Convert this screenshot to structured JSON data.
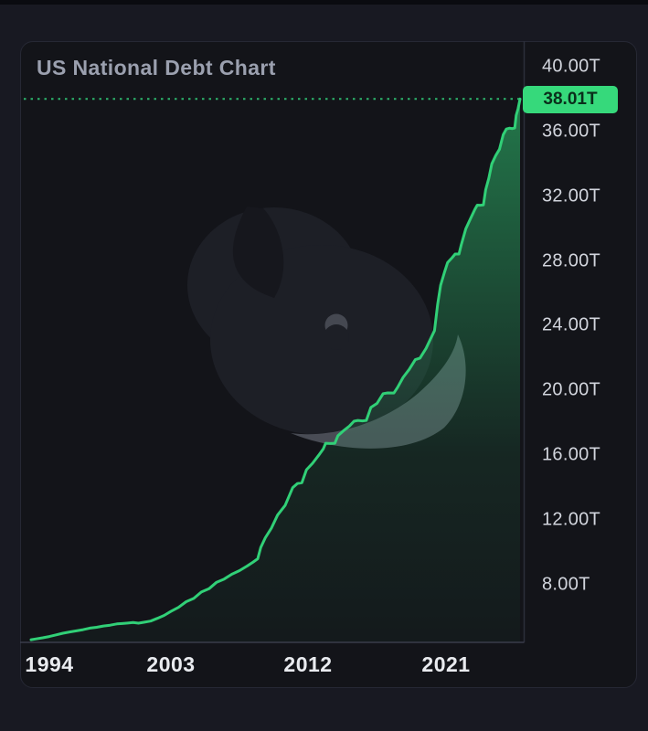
{
  "chart": {
    "title": "US National Debt Chart",
    "current_value_label": "38.01T"
  },
  "chart_data": {
    "type": "area",
    "title": "US National Debt Chart",
    "series_name": "US National Debt",
    "unit": "USD trillions",
    "x_tick_labels": [
      "1994",
      "2003",
      "2012",
      "2021"
    ],
    "x_tick_years": [
      1994,
      2003,
      2012,
      2021
    ],
    "y_tick_labels": [
      "40.00T",
      "36.00T",
      "32.00T",
      "28.00T",
      "24.00T",
      "20.00T",
      "16.00T",
      "12.00T",
      "8.00T"
    ],
    "y_tick_values": [
      40,
      36,
      32,
      28,
      24,
      20,
      16,
      12,
      8
    ],
    "current_value": 38.01,
    "current_value_label": "38.01T",
    "x_range_years": [
      1992.9,
      2025.85
    ],
    "y_axis_visible_range": [
      4.4,
      41.6
    ],
    "grid": "off",
    "legend": "none",
    "points": [
      [
        1992.9,
        4.6
      ],
      [
        1993.2,
        4.65
      ],
      [
        1993.6,
        4.72
      ],
      [
        1994,
        4.8
      ],
      [
        1994.5,
        4.9
      ],
      [
        1995,
        5.0
      ],
      [
        1995.5,
        5.08
      ],
      [
        1996,
        5.15
      ],
      [
        1996.5,
        5.22
      ],
      [
        1997,
        5.32
      ],
      [
        1997.5,
        5.37
      ],
      [
        1998,
        5.45
      ],
      [
        1998.5,
        5.5
      ],
      [
        1999,
        5.58
      ],
      [
        1999.4,
        5.6
      ],
      [
        1999.8,
        5.63
      ],
      [
        2000.2,
        5.66
      ],
      [
        2000.6,
        5.62
      ],
      [
        2001,
        5.68
      ],
      [
        2001.5,
        5.75
      ],
      [
        2002,
        5.92
      ],
      [
        2002.5,
        6.1
      ],
      [
        2003,
        6.35
      ],
      [
        2003.5,
        6.6
      ],
      [
        2004,
        6.95
      ],
      [
        2004.5,
        7.15
      ],
      [
        2005,
        7.55
      ],
      [
        2005.5,
        7.75
      ],
      [
        2006,
        8.15
      ],
      [
        2006.5,
        8.35
      ],
      [
        2007,
        8.65
      ],
      [
        2007.5,
        8.87
      ],
      [
        2008,
        9.15
      ],
      [
        2008.4,
        9.4
      ],
      [
        2008.7,
        9.6
      ],
      [
        2008.9,
        10.3
      ],
      [
        2009.2,
        10.9
      ],
      [
        2009.6,
        11.5
      ],
      [
        2010,
        12.3
      ],
      [
        2010.5,
        12.9
      ],
      [
        2011,
        14.0
      ],
      [
        2011.3,
        14.25
      ],
      [
        2011.6,
        14.3
      ],
      [
        2011.9,
        15.1
      ],
      [
        2012.3,
        15.5
      ],
      [
        2012.7,
        16.0
      ],
      [
        2013.0,
        16.4
      ],
      [
        2013.15,
        16.74
      ],
      [
        2013.45,
        16.72
      ],
      [
        2013.75,
        16.74
      ],
      [
        2013.95,
        17.2
      ],
      [
        2014.3,
        17.5
      ],
      [
        2014.7,
        17.8
      ],
      [
        2015.0,
        18.1
      ],
      [
        2015.25,
        18.15
      ],
      [
        2015.55,
        18.12
      ],
      [
        2015.8,
        18.15
      ],
      [
        2016.1,
        18.95
      ],
      [
        2016.5,
        19.2
      ],
      [
        2016.9,
        19.8
      ],
      [
        2017.2,
        19.85
      ],
      [
        2017.6,
        19.84
      ],
      [
        2017.85,
        20.2
      ],
      [
        2018.2,
        20.8
      ],
      [
        2018.6,
        21.3
      ],
      [
        2019,
        21.9
      ],
      [
        2019.3,
        22.0
      ],
      [
        2019.7,
        22.6
      ],
      [
        2020,
        23.2
      ],
      [
        2020.25,
        23.7
      ],
      [
        2020.45,
        25.3
      ],
      [
        2020.65,
        26.5
      ],
      [
        2020.9,
        27.3
      ],
      [
        2021.1,
        27.9
      ],
      [
        2021.4,
        28.2
      ],
      [
        2021.6,
        28.43
      ],
      [
        2021.85,
        28.43
      ],
      [
        2022,
        29.0
      ],
      [
        2022.3,
        30.0
      ],
      [
        2022.6,
        30.6
      ],
      [
        2022.9,
        31.2
      ],
      [
        2023.05,
        31.45
      ],
      [
        2023.25,
        31.44
      ],
      [
        2023.45,
        31.46
      ],
      [
        2023.6,
        32.4
      ],
      [
        2023.8,
        33.1
      ],
      [
        2024,
        34.0
      ],
      [
        2024.25,
        34.5
      ],
      [
        2024.5,
        34.9
      ],
      [
        2024.75,
        35.8
      ],
      [
        2024.95,
        36.15
      ],
      [
        2025.15,
        36.2
      ],
      [
        2025.35,
        36.18
      ],
      [
        2025.5,
        36.22
      ],
      [
        2025.6,
        37.0
      ],
      [
        2025.72,
        37.4
      ],
      [
        2025.85,
        38.01
      ]
    ]
  },
  "colors": {
    "page_bg": "#181922",
    "panel_bg": "#131419",
    "panel_border": "#262834",
    "plot_border": "#3a3d4b",
    "axis_divider": "#2c2f3b",
    "line_green": "#31d077",
    "dotted_green": "#2fbf71",
    "badge_bg": "#36d97b",
    "badge_text": "#0a2e1b",
    "title_text": "#9ba0af",
    "y_label_text": "#d2d5dd",
    "x_label_text": "#e9ebef",
    "watermark_body": "#1d1f26",
    "watermark_tail": "#16171d",
    "watermark_eye": "#454851",
    "watermark_belly": "#4e515a"
  }
}
